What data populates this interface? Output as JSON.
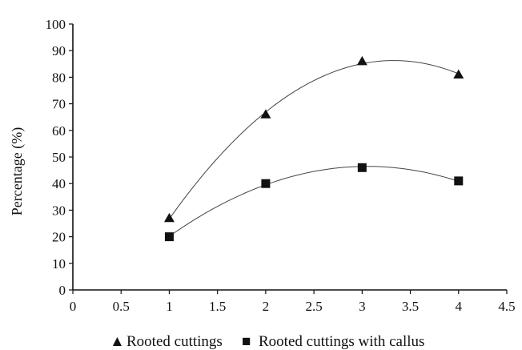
{
  "chart_data": {
    "type": "scatter",
    "title": "",
    "xlabel": "",
    "ylabel": "Percentage (%)",
    "xlim": [
      0,
      4.5
    ],
    "ylim": [
      0,
      100
    ],
    "x_ticks": [
      "0",
      "0.5",
      "1",
      "1.5",
      "2",
      "2.5",
      "3",
      "3.5",
      "4",
      "4.5"
    ],
    "y_ticks": [
      "0",
      "10",
      "20",
      "30",
      "40",
      "50",
      "60",
      "70",
      "80",
      "90",
      "100"
    ],
    "grid": false,
    "legend_position": "bottom",
    "trendline": "polynomial-order-2",
    "series": [
      {
        "name": "Rooted cuttings",
        "marker": "triangle",
        "legend_symbol": "▲",
        "color": "#111111",
        "x": [
          1,
          2,
          3,
          4
        ],
        "y": [
          27,
          66,
          86,
          81
        ]
      },
      {
        "name": "Rooted cuttings with callus",
        "marker": "square",
        "legend_symbol": "■",
        "color": "#111111",
        "x": [
          1,
          2,
          3,
          4
        ],
        "y": [
          20,
          40,
          46,
          41
        ]
      }
    ]
  }
}
